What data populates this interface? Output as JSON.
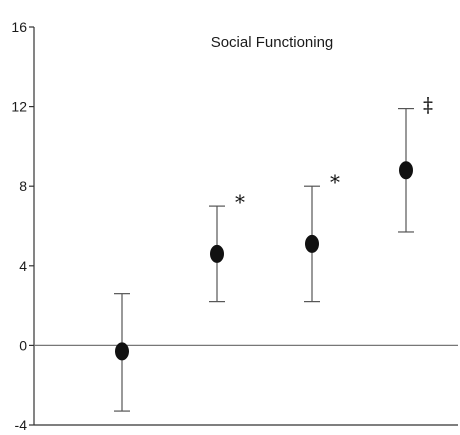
{
  "chart_data": {
    "type": "scatter",
    "title": "Social Functioning",
    "xlabel": "",
    "ylabel": "",
    "ylim": [
      -4,
      16
    ],
    "y_ticks": [
      "16",
      "12",
      "8",
      "4",
      "0",
      "-4"
    ],
    "reference_line": 0,
    "grid": false,
    "legend": "none",
    "points": [
      {
        "index": 1,
        "y": -0.3,
        "err_low": -3.3,
        "err_high": 2.6,
        "marker": ""
      },
      {
        "index": 2,
        "y": 4.6,
        "err_low": 2.2,
        "err_high": 7.0,
        "marker": "*"
      },
      {
        "index": 3,
        "y": 5.1,
        "err_low": 2.2,
        "err_high": 8.0,
        "marker": "*"
      },
      {
        "index": 4,
        "y": 8.8,
        "err_low": 5.7,
        "err_high": 11.9,
        "marker": "‡"
      }
    ],
    "colors": {
      "point": "#111111",
      "error_bar": "#555555",
      "axis": "#333333",
      "reference_line": "#777777"
    }
  }
}
